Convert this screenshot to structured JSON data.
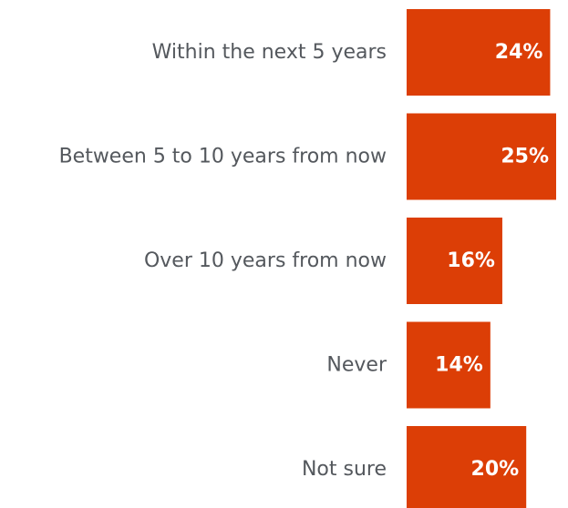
{
  "chart_data": {
    "type": "bar",
    "orientation": "horizontal",
    "categories": [
      "Within the next 5 years",
      "Between 5 to 10 years from now",
      "Over 10 years from now",
      "Never",
      "Not sure"
    ],
    "values": [
      24,
      25,
      16,
      14,
      20
    ],
    "value_labels": [
      "24%",
      "25%",
      "16%",
      "14%",
      "20%"
    ],
    "bar_color": "#dc3e06",
    "label_color": "#54585d",
    "value_label_color": "#ffffff",
    "xlim": [
      0,
      25
    ]
  }
}
